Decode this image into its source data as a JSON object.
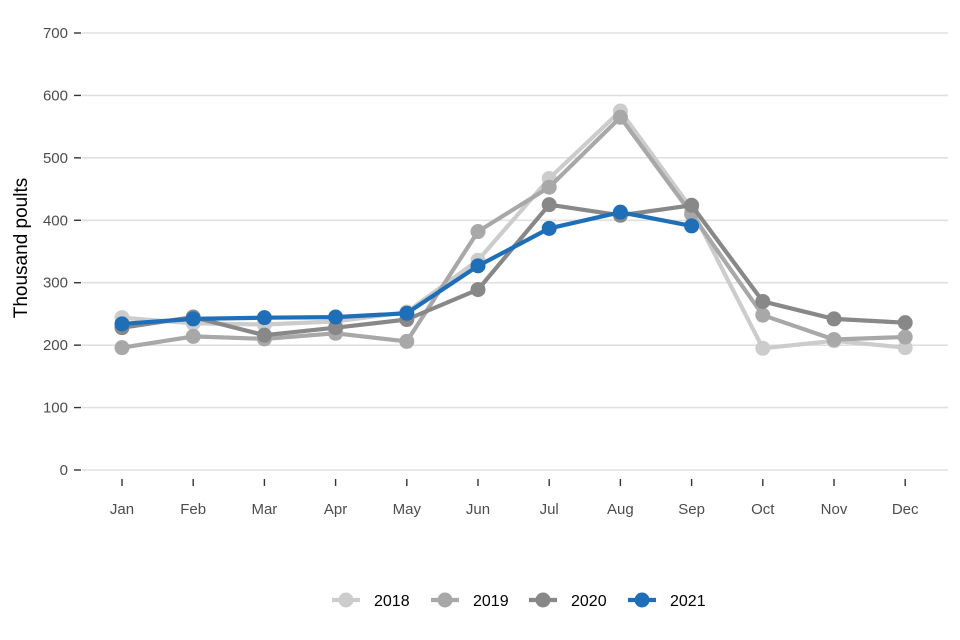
{
  "chart_data": {
    "type": "line",
    "title": "",
    "xlabel": "",
    "ylabel": "Thousand poults",
    "ylim": [
      0,
      700
    ],
    "yticks": [
      0,
      100,
      200,
      300,
      400,
      500,
      600,
      700
    ],
    "grid": true,
    "legend": "bottom",
    "categories": [
      "Jan",
      "Feb",
      "Mar",
      "Apr",
      "May",
      "Jun",
      "Jul",
      "Aug",
      "Sep",
      "Oct",
      "Nov",
      "Dec"
    ],
    "series": [
      {
        "name": "2018",
        "color": "#cccccc",
        "values": [
          244,
          235,
          233,
          238,
          253,
          336,
          467,
          575,
          418,
          195,
          207,
          196
        ]
      },
      {
        "name": "2019",
        "color": "#a8a8a8",
        "values": [
          196,
          214,
          210,
          219,
          206,
          382,
          453,
          565,
          410,
          248,
          209,
          213
        ]
      },
      {
        "name": "2020",
        "color": "#888888",
        "values": [
          228,
          245,
          216,
          228,
          241,
          289,
          425,
          408,
          424,
          270,
          242,
          236
        ]
      },
      {
        "name": "2021",
        "color": "#1f6eb8",
        "values": [
          234,
          242,
          244,
          245,
          251,
          327,
          387,
          413,
          391,
          null,
          null,
          null
        ]
      }
    ]
  }
}
